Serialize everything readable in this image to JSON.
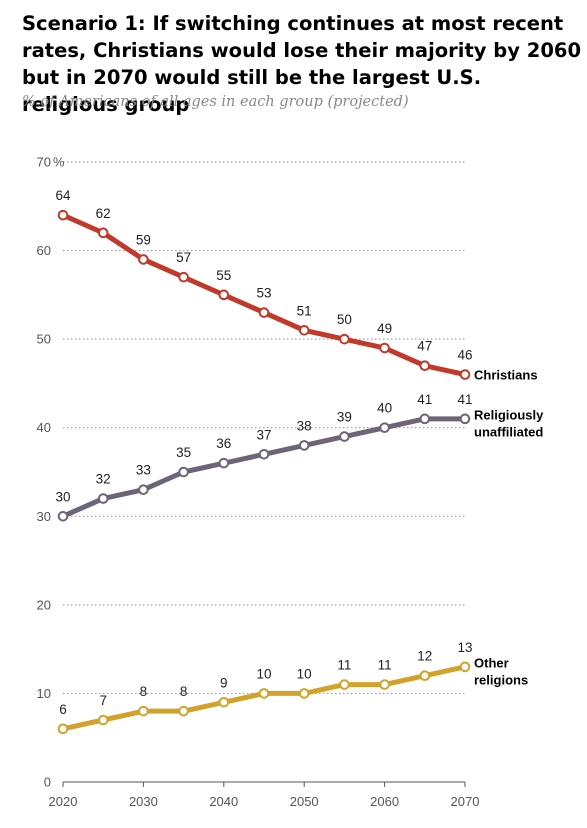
{
  "header": {
    "title": "Scenario 1: If switching continues at most recent rates, Christians would lose their majority by 2060 but in 2070 would still be the largest U.S. religious group",
    "subtitle": "% of Americans of all ages in each group (projected)"
  },
  "chart_data": {
    "type": "line",
    "title": "Scenario 1: If switching continues at most recent rates, Christians would lose their majority by 2060 but in 2070 would still be the largest U.S. religious group",
    "subtitle": "% of Americans of all ages in each group (projected)",
    "x": [
      2020,
      2025,
      2030,
      2035,
      2040,
      2045,
      2050,
      2055,
      2060,
      2065,
      2070
    ],
    "x_ticks": [
      2020,
      2030,
      2040,
      2050,
      2060,
      2070
    ],
    "y_ticks": [
      0,
      10,
      20,
      30,
      40,
      50,
      60,
      70
    ],
    "y_top_label": "70",
    "y_unit": "%",
    "ylim": [
      0,
      70
    ],
    "xlim": [
      2020,
      2070
    ],
    "grid": true,
    "series": [
      {
        "name": "Christians",
        "label_lines": [
          "Christians"
        ],
        "color": "#c0392b",
        "values": [
          64,
          62,
          59,
          57,
          55,
          53,
          51,
          50,
          49,
          47,
          46
        ]
      },
      {
        "name": "Religiously unaffiliated",
        "label_lines": [
          "Religiously",
          "unaffiliated"
        ],
        "color": "#6e6478",
        "values": [
          30,
          32,
          33,
          35,
          36,
          37,
          38,
          39,
          40,
          41,
          41
        ]
      },
      {
        "name": "Other religions",
        "label_lines": [
          "Other",
          "religions"
        ],
        "color": "#d1a32a",
        "values": [
          6,
          7,
          8,
          8,
          9,
          10,
          10,
          11,
          11,
          12,
          13
        ]
      }
    ]
  }
}
